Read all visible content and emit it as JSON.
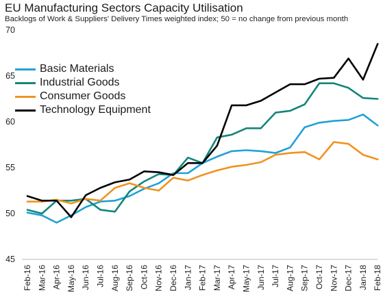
{
  "chart_data": {
    "type": "line",
    "title": "EU Manufacturing Sectors Capacity Utilisation",
    "subtitle": "Backlogs of Work & Suppliers' Delivery Times weighted index; 50 = no change from previous month",
    "xlabel": "",
    "ylabel": "",
    "ylim": [
      45,
      70
    ],
    "yticks": [
      "45",
      "50",
      "55",
      "60",
      "65",
      "70"
    ],
    "grid": false,
    "legend_position": "top-left",
    "categories": [
      "Feb-16",
      "Mar-16",
      "Apr-16",
      "May-16",
      "Jun-16",
      "Jul-16",
      "Aug-16",
      "Sep-16",
      "Oct-16",
      "Nov-16",
      "Dec-16",
      "Jan-17",
      "Feb-17",
      "Mar-17",
      "Apr-17",
      "May-17",
      "Jun-17",
      "Jul-17",
      "Aug-17",
      "Sep-17",
      "Oct-17",
      "Nov-17",
      "Dec-17",
      "Jan-18",
      "Feb-18"
    ],
    "xtick_labels": [
      "Feb-16",
      "Mar-16",
      "Apr-16",
      "May-16",
      "Jun-16",
      "Jul-16",
      "Aug-16",
      "Sep-16",
      "Oct-16",
      "Nov-16",
      "Dec-16",
      "Jan-17",
      "Feb-17",
      "Mar-17",
      "Apr-17",
      "May-17",
      "Jun-17",
      "Jul-17",
      "Aug-17",
      "Sep-17",
      "Oct-17",
      "Nov-17",
      "Dec-17",
      "Jan-18",
      "Feb-18"
    ],
    "series": [
      {
        "name": "Basic Materials",
        "color": "#1fa2d6",
        "values": [
          50.1,
          49.8,
          49.0,
          49.8,
          50.7,
          51.3,
          51.4,
          51.9,
          52.7,
          53.3,
          54.4,
          54.4,
          55.5,
          56.2,
          56.8,
          56.9,
          56.8,
          56.6,
          57.2,
          59.4,
          59.9,
          60.1,
          60.2,
          60.8,
          59.6
        ]
      },
      {
        "name": "Industrial Goods",
        "color": "#12857a",
        "values": [
          50.4,
          50.0,
          51.4,
          51.4,
          51.6,
          50.4,
          50.2,
          52.4,
          53.5,
          54.3,
          54.2,
          56.1,
          55.5,
          58.3,
          58.6,
          59.3,
          59.3,
          61.0,
          61.2,
          61.9,
          64.2,
          64.2,
          63.7,
          62.6,
          62.5
        ]
      },
      {
        "name": "Consumer Goods",
        "color": "#f0921e",
        "values": [
          51.3,
          51.3,
          51.5,
          51.1,
          51.6,
          51.4,
          52.8,
          53.3,
          52.8,
          52.5,
          53.9,
          53.6,
          54.2,
          54.7,
          55.1,
          55.3,
          55.6,
          56.4,
          56.6,
          56.7,
          55.9,
          57.8,
          57.6,
          56.4,
          55.9
        ]
      },
      {
        "name": "Technology Equipment",
        "color": "#000000",
        "values": [
          51.9,
          51.4,
          51.4,
          49.6,
          52.0,
          52.8,
          53.4,
          53.7,
          54.6,
          54.5,
          54.2,
          55.5,
          55.5,
          57.4,
          61.8,
          61.8,
          62.3,
          63.2,
          64.1,
          64.1,
          64.7,
          64.8,
          66.9,
          64.6,
          68.5
        ]
      }
    ]
  }
}
